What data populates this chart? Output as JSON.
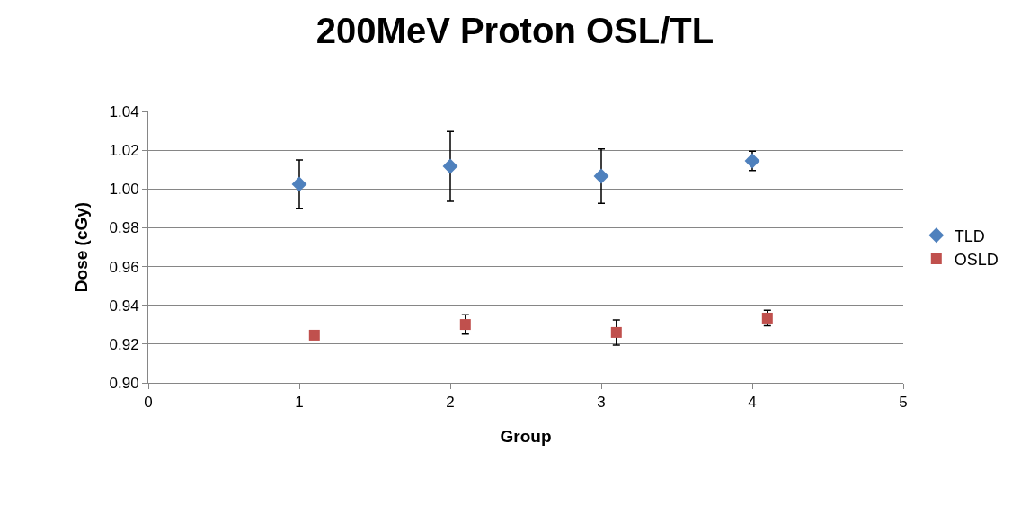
{
  "chart_data": {
    "type": "scatter",
    "title": "200MeV Proton OSL/TL",
    "xlabel": "Group",
    "ylabel": "Dose (cGy)",
    "series": [
      {
        "name": "TLD",
        "color": "#4f81bd",
        "marker": "diamond",
        "x": [
          1,
          2,
          3,
          4
        ],
        "values": [
          1.0025,
          1.0117,
          1.0066,
          1.0145
        ],
        "errors": [
          0.0125,
          0.018,
          0.014,
          0.005
        ]
      },
      {
        "name": "OSLD",
        "color": "#c0504d",
        "marker": "square",
        "x": [
          1.1,
          2.1,
          3.1,
          4.1
        ],
        "values": [
          0.9246,
          0.9301,
          0.926,
          0.9334
        ],
        "errors": [
          null,
          0.005,
          0.0065,
          0.004
        ]
      }
    ],
    "xlim": [
      0,
      5
    ],
    "xticks": [
      0,
      1,
      2,
      3,
      4,
      5
    ],
    "ylim": [
      0.9,
      1.04
    ],
    "yticks": [
      {
        "value": 0.9,
        "label": "0.90"
      },
      {
        "value": 0.92,
        "label": "0.92"
      },
      {
        "value": 0.94,
        "label": "0.94"
      },
      {
        "value": 0.96,
        "label": "0.96"
      },
      {
        "value": 0.98,
        "label": "0.98"
      },
      {
        "value": 1.0,
        "label": "1.00"
      },
      {
        "value": 1.02,
        "label": "1.02"
      },
      {
        "value": 1.04,
        "label": "1.04"
      }
    ],
    "grid": "y",
    "legend": "right"
  }
}
